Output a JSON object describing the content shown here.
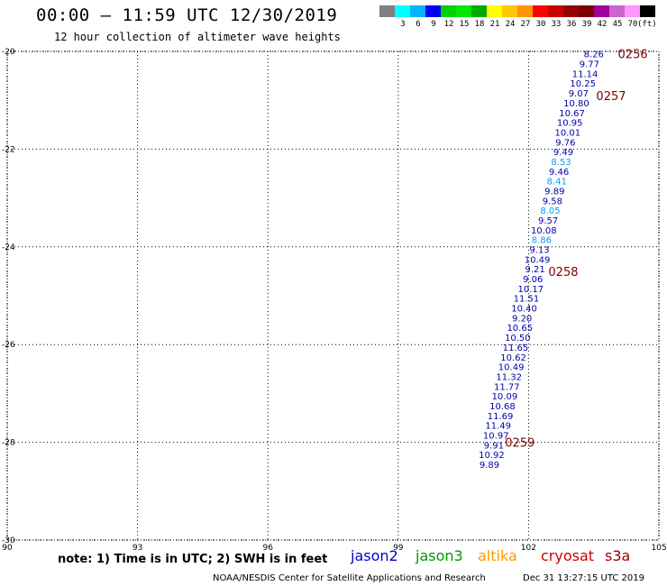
{
  "header": {
    "title": "00:00 – 11:59 UTC 12/30/2019",
    "subtitle": "12 hour collection of altimeter wave heights"
  },
  "colorbar": {
    "colors": [
      "#808080",
      "#00ffff",
      "#00b4ff",
      "#0000ff",
      "#00d200",
      "#00e600",
      "#00aa00",
      "#ffff00",
      "#ffc800",
      "#ff9600",
      "#ff0000",
      "#c80000",
      "#960000",
      "#7d0000",
      "#a000a0",
      "#cc66cc",
      "#ff96ff",
      "#000000"
    ],
    "labels": [
      "3",
      "6",
      "9",
      "12",
      "15",
      "18",
      "21",
      "24",
      "27",
      "30",
      "33",
      "36",
      "39",
      "42",
      "45",
      "70"
    ],
    "unit": "(ft)"
  },
  "map": {
    "x_ticks": [
      "90",
      "93",
      "96",
      "99",
      "102",
      "105"
    ],
    "y_ticks": [
      "-20",
      "-22",
      "-24",
      "-26",
      "-28",
      "-30"
    ]
  },
  "chart_data": {
    "type": "scatter",
    "xlim": [
      90,
      105
    ],
    "ylim": [
      -30,
      -20
    ],
    "grid": true,
    "track_labels": [
      {
        "text": "0256",
        "lon": 104.4,
        "lat": -20.05
      },
      {
        "text": "0257",
        "lon": 103.9,
        "lat": -20.9
      },
      {
        "text": "0258",
        "lon": 102.8,
        "lat": -24.5
      },
      {
        "text": "0259",
        "lon": 101.8,
        "lat": -28.0
      }
    ],
    "points": [
      {
        "v": "8.26",
        "lon": 103.5,
        "lat": -20.05,
        "c": "#0000aa"
      },
      {
        "v": "9.77",
        "lon": 103.4,
        "lat": -20.25,
        "c": "#0000aa"
      },
      {
        "v": "11.14",
        "lon": 103.3,
        "lat": -20.45,
        "c": "#0000aa"
      },
      {
        "v": "10.25",
        "lon": 103.25,
        "lat": -20.65,
        "c": "#0000aa"
      },
      {
        "v": "9.07",
        "lon": 103.15,
        "lat": -20.85,
        "c": "#0000aa"
      },
      {
        "v": "10.80",
        "lon": 103.1,
        "lat": -21.05,
        "c": "#0000aa"
      },
      {
        "v": "10.67",
        "lon": 103.0,
        "lat": -21.25,
        "c": "#0000aa"
      },
      {
        "v": "10.95",
        "lon": 102.95,
        "lat": -21.45,
        "c": "#0000aa"
      },
      {
        "v": "10.01",
        "lon": 102.9,
        "lat": -21.65,
        "c": "#0000aa"
      },
      {
        "v": "9.76",
        "lon": 102.85,
        "lat": -21.85,
        "c": "#0000aa"
      },
      {
        "v": "9.49",
        "lon": 102.8,
        "lat": -22.05,
        "c": "#0000aa"
      },
      {
        "v": "8.53",
        "lon": 102.75,
        "lat": -22.25,
        "c": "#00a0ff"
      },
      {
        "v": "9.46",
        "lon": 102.7,
        "lat": -22.45,
        "c": "#0000aa"
      },
      {
        "v": "8.41",
        "lon": 102.65,
        "lat": -22.65,
        "c": "#00a0ff"
      },
      {
        "v": "9.89",
        "lon": 102.6,
        "lat": -22.85,
        "c": "#0000aa"
      },
      {
        "v": "9.58",
        "lon": 102.55,
        "lat": -23.05,
        "c": "#0000aa"
      },
      {
        "v": "8.05",
        "lon": 102.5,
        "lat": -23.25,
        "c": "#00a0ff"
      },
      {
        "v": "9.57",
        "lon": 102.45,
        "lat": -23.45,
        "c": "#0000aa"
      },
      {
        "v": "10.08",
        "lon": 102.35,
        "lat": -23.65,
        "c": "#0000aa"
      },
      {
        "v": "8.86",
        "lon": 102.3,
        "lat": -23.85,
        "c": "#00a0ff"
      },
      {
        "v": "9.13",
        "lon": 102.25,
        "lat": -24.05,
        "c": "#0000aa"
      },
      {
        "v": "10.49",
        "lon": 102.2,
        "lat": -24.25,
        "c": "#0000aa"
      },
      {
        "v": "9.21",
        "lon": 102.15,
        "lat": -24.45,
        "c": "#0000aa"
      },
      {
        "v": "9.06",
        "lon": 102.1,
        "lat": -24.65,
        "c": "#0000aa"
      },
      {
        "v": "10.17",
        "lon": 102.05,
        "lat": -24.85,
        "c": "#0000aa"
      },
      {
        "v": "11.51",
        "lon": 101.95,
        "lat": -25.05,
        "c": "#0000aa"
      },
      {
        "v": "10.40",
        "lon": 101.9,
        "lat": -25.25,
        "c": "#0000aa"
      },
      {
        "v": "9.20",
        "lon": 101.85,
        "lat": -25.45,
        "c": "#0000aa"
      },
      {
        "v": "10.65",
        "lon": 101.8,
        "lat": -25.65,
        "c": "#0000aa"
      },
      {
        "v": "10.50",
        "lon": 101.75,
        "lat": -25.85,
        "c": "#0000aa"
      },
      {
        "v": "11.65",
        "lon": 101.7,
        "lat": -26.05,
        "c": "#0000aa"
      },
      {
        "v": "10.62",
        "lon": 101.65,
        "lat": -26.25,
        "c": "#0000aa"
      },
      {
        "v": "10.49",
        "lon": 101.6,
        "lat": -26.45,
        "c": "#0000aa"
      },
      {
        "v": "11.32",
        "lon": 101.55,
        "lat": -26.65,
        "c": "#0000aa"
      },
      {
        "v": "11.77",
        "lon": 101.5,
        "lat": -26.85,
        "c": "#0000aa"
      },
      {
        "v": "10.09",
        "lon": 101.45,
        "lat": -27.05,
        "c": "#0000aa"
      },
      {
        "v": "10.68",
        "lon": 101.4,
        "lat": -27.25,
        "c": "#0000aa"
      },
      {
        "v": "11.69",
        "lon": 101.35,
        "lat": -27.45,
        "c": "#0000aa"
      },
      {
        "v": "11.49",
        "lon": 101.3,
        "lat": -27.65,
        "c": "#0000aa"
      },
      {
        "v": "10.97",
        "lon": 101.25,
        "lat": -27.85,
        "c": "#0000aa"
      },
      {
        "v": "9.91",
        "lon": 101.2,
        "lat": -28.05,
        "c": "#0000aa"
      },
      {
        "v": "10.92",
        "lon": 101.15,
        "lat": -28.25,
        "c": "#0000aa"
      },
      {
        "v": "9.89",
        "lon": 101.1,
        "lat": -28.45,
        "c": "#0000aa"
      }
    ]
  },
  "footer": {
    "note": "note: 1) Time is in UTC; 2) SWH is in feet",
    "legend": [
      {
        "name": "jason2",
        "color": "#0000cc"
      },
      {
        "name": "jason3",
        "color": "#009900"
      },
      {
        "name": "altika",
        "color": "#ff9900"
      },
      {
        "name": "cryosat",
        "color": "#cc0000"
      },
      {
        "name": "s3a",
        "color": "#990000"
      }
    ],
    "credit": "NOAA/NESDIS Center for Satellite Applications and Research",
    "timestamp": "Dec 31 13:27:15 UTC 2019"
  }
}
